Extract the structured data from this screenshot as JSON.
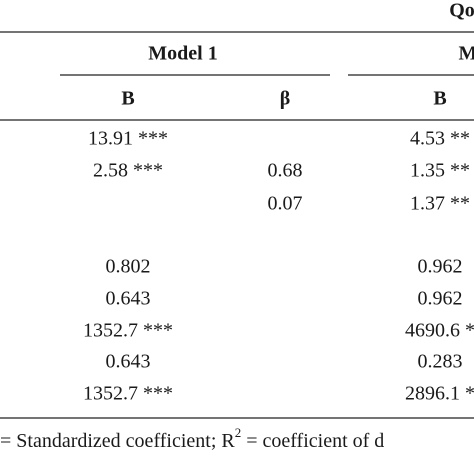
{
  "header": {
    "top": "Qo",
    "groups": [
      "Model 1",
      "M"
    ],
    "columns": [
      "B",
      "β",
      "B"
    ]
  },
  "table": {
    "rows": [
      [
        "13.91 ***",
        null,
        "4.53 **"
      ],
      [
        "2.58 ***",
        "0.68",
        "1.35 **"
      ],
      [
        null,
        "0.07",
        "1.37 **"
      ],
      [
        "0.802",
        null,
        "0.962"
      ],
      [
        "0.643",
        null,
        "0.962"
      ],
      [
        "1352.7 ***",
        null,
        "4690.6 *"
      ],
      [
        "0.643",
        null,
        "0.283"
      ],
      [
        "1352.7 ***",
        null,
        "2896.1 *"
      ]
    ]
  },
  "footnote": {
    "before": "= Standardized coefficient; R",
    "sup": "2",
    "after": " = coefficient of d"
  }
}
